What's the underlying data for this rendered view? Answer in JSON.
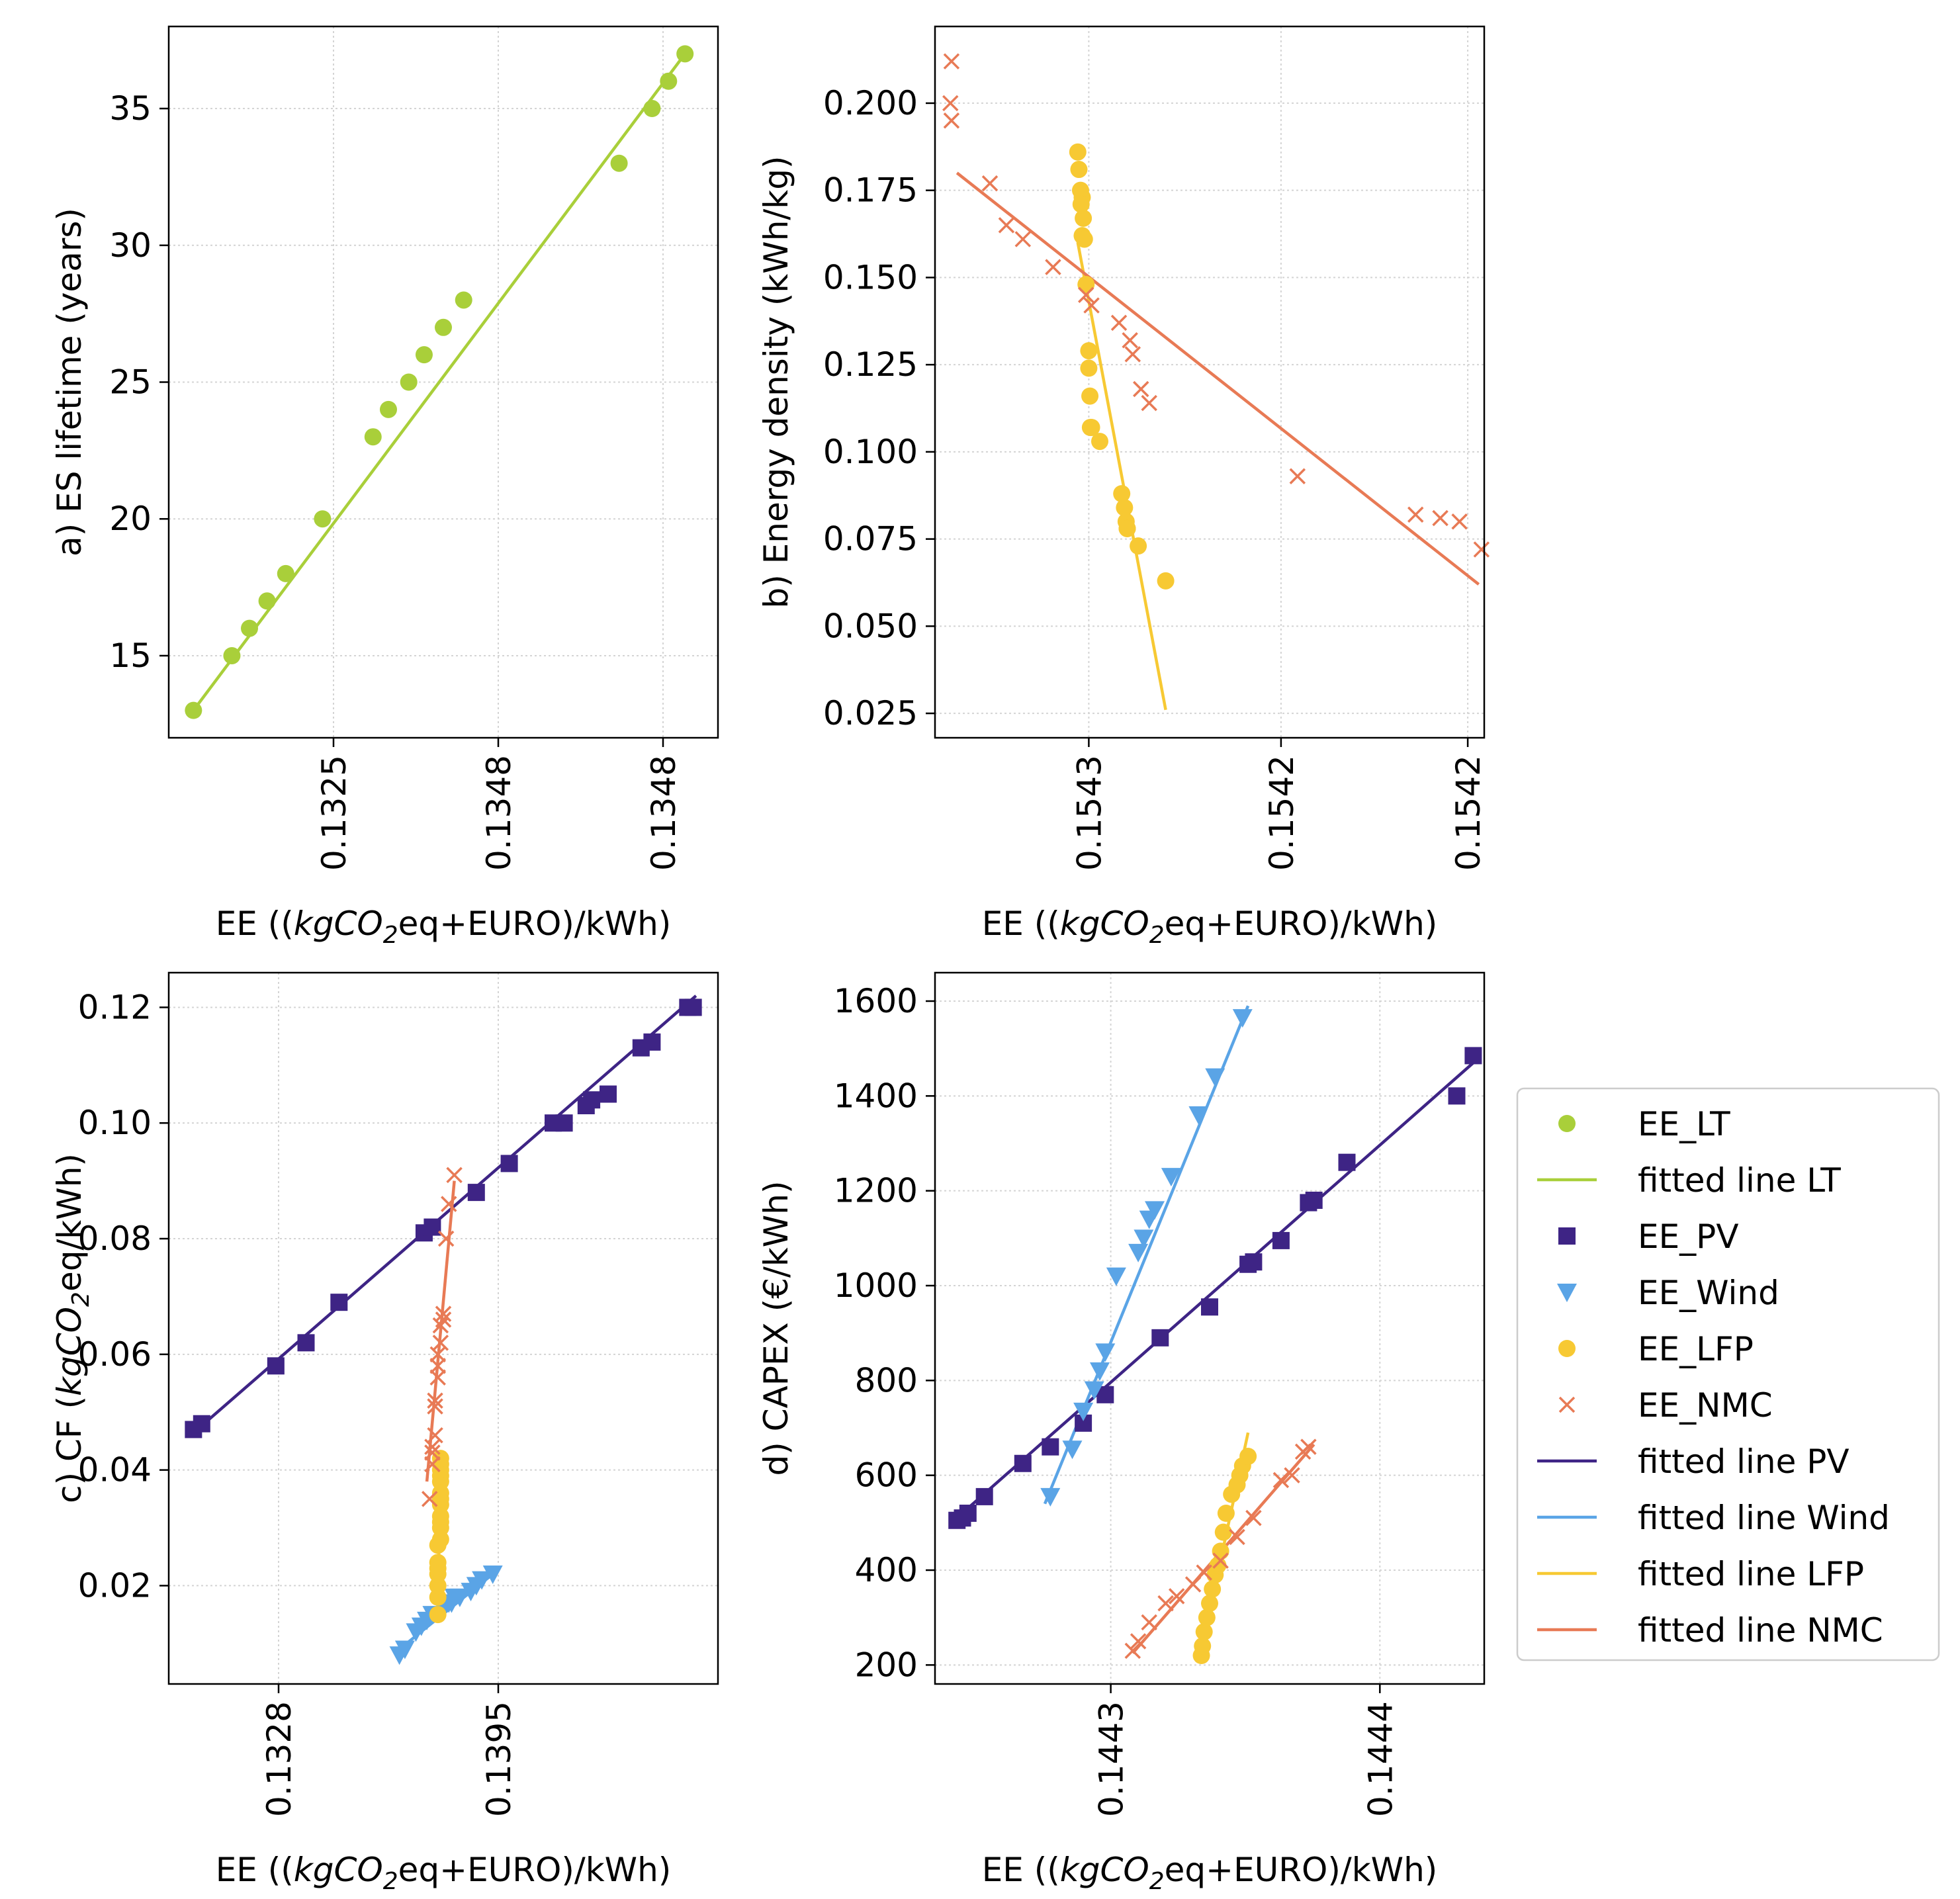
{
  "chart_data": [
    {
      "panel": "a",
      "type": "scatter",
      "xlabel": "EE (({kgCO}_2eq+EURO)/kWh)",
      "ylabel": "a) ES lifetime (years)",
      "ylim": [
        12,
        38
      ],
      "y_ticks": [
        15,
        20,
        25,
        30,
        35
      ],
      "x_ticks": [
        {
          "at": 0.3,
          "label": "0.1325"
        },
        {
          "at": 0.6,
          "label": "0.1348"
        },
        {
          "at": 0.9,
          "label": "0.1348"
        }
      ],
      "xlim": [
        0,
        1
      ],
      "grid": true,
      "series": [
        {
          "name": "EE_LT",
          "marker": "circle",
          "color": "#a9cf3a",
          "x": [
            0.045,
            0.115,
            0.147,
            0.179,
            0.213,
            0.28,
            0.372,
            0.4,
            0.437,
            0.465,
            0.5,
            0.537,
            0.82,
            0.88,
            0.91,
            0.94
          ],
          "y": [
            13,
            15,
            16,
            17,
            18,
            20,
            23,
            24,
            25,
            26,
            27,
            28,
            33,
            35,
            36,
            37
          ]
        },
        {
          "name": "fitted line LT",
          "type": "line",
          "color": "#a9cf3a",
          "x": [
            0.045,
            0.94
          ],
          "y": [
            13,
            37
          ]
        }
      ]
    },
    {
      "panel": "b",
      "type": "scatter",
      "xlabel": "EE (({kgCO}_2eq+EURO)/kWh)",
      "ylabel": "b) Energy density (kWh/kg)",
      "ylim": [
        0.018,
        0.222
      ],
      "y_ticks": [
        0.025,
        0.05,
        0.075,
        0.1,
        0.125,
        0.15,
        0.175,
        0.2
      ],
      "y_tick_labels": [
        "0.025",
        "0.050",
        "0.075",
        "0.100",
        "0.125",
        "0.150",
        "0.175",
        "0.200"
      ],
      "x_ticks": [
        {
          "at": 0.28,
          "label": "0.1543"
        },
        {
          "at": 0.63,
          "label": "0.1542"
        },
        {
          "at": 0.97,
          "label": "0.1542"
        }
      ],
      "xlim": [
        0,
        1
      ],
      "grid": true,
      "series": [
        {
          "name": "EE_LFP",
          "marker": "circle",
          "color": "#f7c933",
          "x": [
            0.26,
            0.262,
            0.265,
            0.268,
            0.266,
            0.27,
            0.268,
            0.272,
            0.275,
            0.28,
            0.28,
            0.282,
            0.283,
            0.285,
            0.3,
            0.34,
            0.345,
            0.348,
            0.35,
            0.35,
            0.37,
            0.42
          ],
          "y": [
            0.186,
            0.181,
            0.175,
            0.173,
            0.171,
            0.167,
            0.162,
            0.161,
            0.148,
            0.129,
            0.124,
            0.116,
            0.107,
            0.107,
            0.103,
            0.088,
            0.084,
            0.08,
            0.078,
            0.078,
            0.073,
            0.063
          ]
        },
        {
          "name": "EE_NMC",
          "marker": "x",
          "color": "#e87a55",
          "x": [
            0.03,
            0.028,
            0.03,
            0.1,
            0.13,
            0.16,
            0.215,
            0.275,
            0.285,
            0.335,
            0.355,
            0.36,
            0.375,
            0.39,
            0.66,
            0.875,
            0.92,
            0.955,
            0.995
          ],
          "y": [
            0.212,
            0.2,
            0.195,
            0.177,
            0.165,
            0.161,
            0.153,
            0.145,
            0.142,
            0.137,
            0.132,
            0.128,
            0.118,
            0.114,
            0.093,
            0.082,
            0.081,
            0.08,
            0.072
          ]
        },
        {
          "name": "fitted line LFP",
          "type": "line",
          "color": "#f7c933",
          "x": [
            0.26,
            0.42
          ],
          "y": [
            0.16,
            0.026
          ]
        },
        {
          "name": "fitted line NMC",
          "type": "line",
          "color": "#e87a55",
          "x": [
            0.04,
            0.99
          ],
          "y": [
            0.18,
            0.062
          ]
        }
      ]
    },
    {
      "panel": "c",
      "type": "scatter",
      "xlabel": "EE (({kgCO}_2eq+EURO)/kWh)",
      "ylabel": "c) CF ({kgCO}_2eq/kWh)",
      "ylim": [
        0.003,
        0.126
      ],
      "y_ticks": [
        0.02,
        0.04,
        0.06,
        0.08,
        0.1,
        0.12
      ],
      "y_tick_labels": [
        "0.02",
        "0.04",
        "0.06",
        "0.08",
        "0.10",
        "0.12"
      ],
      "x_ticks": [
        {
          "at": 0.2,
          "label": "0.1328"
        },
        {
          "at": 0.6,
          "label": "0.1395"
        }
      ],
      "xlim": [
        0,
        1
      ],
      "grid": true,
      "series": [
        {
          "name": "EE_PV",
          "marker": "square",
          "color": "#3e2485",
          "x": [
            0.045,
            0.06,
            0.195,
            0.25,
            0.31,
            0.465,
            0.48,
            0.56,
            0.62,
            0.7,
            0.72,
            0.76,
            0.77,
            0.8,
            0.86,
            0.88,
            0.945,
            0.955
          ],
          "y": [
            0.047,
            0.048,
            0.058,
            0.062,
            0.069,
            0.081,
            0.082,
            0.088,
            0.093,
            0.1,
            0.1,
            0.103,
            0.104,
            0.105,
            0.113,
            0.114,
            0.12,
            0.12
          ]
        },
        {
          "name": "EE_Wind",
          "marker": "triangle-down",
          "color": "#5aa4e6",
          "x": [
            0.42,
            0.43,
            0.45,
            0.46,
            0.47,
            0.48,
            0.5,
            0.5,
            0.51,
            0.515,
            0.52,
            0.53,
            0.55,
            0.56,
            0.57,
            0.59
          ],
          "y": [
            0.008,
            0.009,
            0.012,
            0.013,
            0.014,
            0.015,
            0.016,
            0.016,
            0.017,
            0.017,
            0.018,
            0.018,
            0.019,
            0.02,
            0.021,
            0.022
          ]
        },
        {
          "name": "EE_LFP",
          "marker": "circle",
          "color": "#f7c933",
          "x": [
            0.49,
            0.49,
            0.49,
            0.49,
            0.49,
            0.49,
            0.49,
            0.495,
            0.495,
            0.495,
            0.495,
            0.495,
            0.495,
            0.495,
            0.495,
            0.495,
            0.495,
            0.495,
            0.495
          ],
          "y": [
            0.015,
            0.018,
            0.02,
            0.022,
            0.023,
            0.024,
            0.027,
            0.028,
            0.03,
            0.031,
            0.032,
            0.034,
            0.035,
            0.036,
            0.038,
            0.039,
            0.04,
            0.041,
            0.042
          ]
        },
        {
          "name": "EE_NMC",
          "marker": "x",
          "color": "#e87a55",
          "x": [
            0.475,
            0.48,
            0.48,
            0.48,
            0.485,
            0.485,
            0.485,
            0.49,
            0.49,
            0.49,
            0.495,
            0.495,
            0.5,
            0.5,
            0.505,
            0.51,
            0.52
          ],
          "y": [
            0.035,
            0.041,
            0.043,
            0.044,
            0.046,
            0.051,
            0.052,
            0.056,
            0.058,
            0.06,
            0.062,
            0.065,
            0.066,
            0.067,
            0.08,
            0.086,
            0.091
          ]
        },
        {
          "name": "fitted line PV",
          "type": "line",
          "color": "#3e2485",
          "x": [
            0.04,
            0.96
          ],
          "y": [
            0.046,
            0.122
          ]
        },
        {
          "name": "fitted line Wind",
          "type": "line",
          "color": "#5aa4e6",
          "x": [
            0.42,
            0.59
          ],
          "y": [
            0.009,
            0.022
          ]
        },
        {
          "name": "fitted line LFP",
          "type": "line",
          "color": "#f7c933",
          "x": [
            0.49,
            0.495
          ],
          "y": [
            0.015,
            0.043
          ]
        },
        {
          "name": "fitted line NMC",
          "type": "line",
          "color": "#e87a55",
          "x": [
            0.47,
            0.52
          ],
          "y": [
            0.038,
            0.09
          ]
        }
      ]
    },
    {
      "panel": "d",
      "type": "scatter",
      "xlabel": "EE (({kgCO}_2eq+EURO)/kWh)",
      "ylabel": "d) CAPEX (€/kWh)",
      "ylim": [
        160,
        1660
      ],
      "y_ticks": [
        200,
        400,
        600,
        800,
        1000,
        1200,
        1400,
        1600
      ],
      "x_ticks": [
        {
          "at": 0.32,
          "label": "0.1443"
        },
        {
          "at": 0.81,
          "label": "0.1444"
        }
      ],
      "xlim": [
        0,
        1
      ],
      "grid": true,
      "series": [
        {
          "name": "EE_PV",
          "marker": "square",
          "color": "#3e2485",
          "x": [
            0.04,
            0.05,
            0.06,
            0.09,
            0.16,
            0.21,
            0.27,
            0.31,
            0.41,
            0.5,
            0.57,
            0.58,
            0.63,
            0.68,
            0.69,
            0.75,
            0.95,
            0.98
          ],
          "y": [
            505,
            510,
            520,
            555,
            625,
            660,
            710,
            770,
            890,
            955,
            1045,
            1050,
            1095,
            1175,
            1180,
            1260,
            1400,
            1485
          ]
        },
        {
          "name": "EE_Wind",
          "marker": "triangle-down",
          "color": "#5aa4e6",
          "x": [
            0.21,
            0.25,
            0.27,
            0.29,
            0.3,
            0.31,
            0.33,
            0.37,
            0.38,
            0.39,
            0.4,
            0.43,
            0.48,
            0.51,
            0.56
          ],
          "y": [
            555,
            655,
            735,
            780,
            820,
            860,
            1020,
            1070,
            1100,
            1140,
            1160,
            1230,
            1360,
            1440,
            1565
          ]
        },
        {
          "name": "EE_LFP",
          "marker": "circle",
          "color": "#f7c933",
          "x": [
            0.485,
            0.487,
            0.49,
            0.495,
            0.5,
            0.505,
            0.51,
            0.515,
            0.52,
            0.525,
            0.53,
            0.54,
            0.55,
            0.555,
            0.56,
            0.57
          ],
          "y": [
            220,
            240,
            270,
            300,
            330,
            360,
            390,
            410,
            440,
            480,
            520,
            560,
            580,
            600,
            620,
            640
          ]
        },
        {
          "name": "EE_NMC",
          "marker": "x",
          "color": "#e87a55",
          "x": [
            0.36,
            0.37,
            0.39,
            0.42,
            0.44,
            0.47,
            0.49,
            0.52,
            0.55,
            0.58,
            0.63,
            0.65,
            0.67,
            0.68
          ],
          "y": [
            230,
            250,
            290,
            330,
            345,
            370,
            395,
            420,
            470,
            510,
            590,
            600,
            650,
            660
          ]
        },
        {
          "name": "fitted line PV",
          "type": "line",
          "color": "#3e2485",
          "x": [
            0.03,
            0.99
          ],
          "y": [
            500,
            1480
          ]
        },
        {
          "name": "fitted line Wind",
          "type": "line",
          "color": "#5aa4e6",
          "x": [
            0.2,
            0.57
          ],
          "y": [
            540,
            1590
          ]
        },
        {
          "name": "fitted line LFP",
          "type": "line",
          "color": "#f7c933",
          "x": [
            0.48,
            0.57
          ],
          "y": [
            205,
            690
          ]
        },
        {
          "name": "fitted line NMC",
          "type": "line",
          "color": "#e87a55",
          "x": [
            0.36,
            0.69
          ],
          "y": [
            225,
            665
          ]
        }
      ]
    }
  ],
  "legend": {
    "placement": "right of panel d",
    "items": [
      {
        "label": "EE_LT",
        "kind": "marker",
        "marker": "circle",
        "color": "#a9cf3a"
      },
      {
        "label": "fitted line LT",
        "kind": "line",
        "color": "#a9cf3a"
      },
      {
        "label": "EE_PV",
        "kind": "marker",
        "marker": "square",
        "color": "#3e2485"
      },
      {
        "label": "EE_Wind",
        "kind": "marker",
        "marker": "triangle-down",
        "color": "#5aa4e6"
      },
      {
        "label": "EE_LFP",
        "kind": "marker",
        "marker": "circle",
        "color": "#f7c933"
      },
      {
        "label": "EE_NMC",
        "kind": "marker",
        "marker": "x",
        "color": "#e87a55"
      },
      {
        "label": "fitted line PV",
        "kind": "line",
        "color": "#3e2485"
      },
      {
        "label": "fitted line Wind",
        "kind": "line",
        "color": "#5aa4e6"
      },
      {
        "label": "fitted line LFP",
        "kind": "line",
        "color": "#f7c933"
      },
      {
        "label": "fitted line NMC",
        "kind": "line",
        "color": "#e87a55"
      }
    ]
  }
}
